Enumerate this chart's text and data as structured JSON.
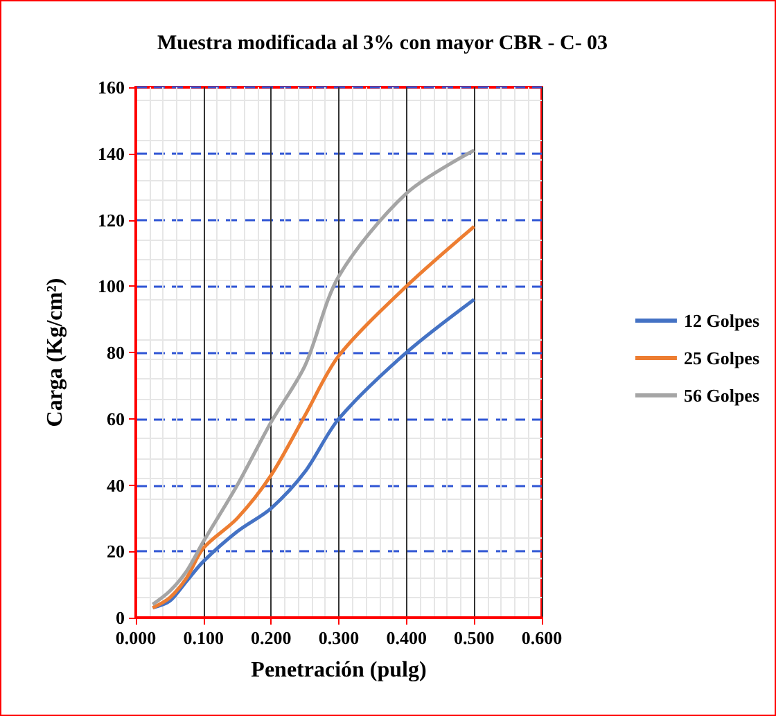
{
  "chart_data": {
    "type": "line",
    "title": "Muestra modificada al 3% con mayor CBR - C- 03",
    "xlabel": "Penetración (pulg)",
    "ylabel": "Carga (Kg/cm²)",
    "x": [
      0.025,
      0.05,
      0.075,
      0.1,
      0.15,
      0.2,
      0.25,
      0.3,
      0.4,
      0.5
    ],
    "series": [
      {
        "name": "12 Golpes",
        "color": "#4472c4",
        "values": [
          3,
          5,
          11,
          17,
          26,
          33,
          44,
          60,
          80,
          96
        ]
      },
      {
        "name": "25 Golpes",
        "color": "#ed7d31",
        "values": [
          3,
          6,
          12,
          21,
          30,
          43,
          61,
          79,
          100,
          118
        ]
      },
      {
        "name": "56 Golpes",
        "color": "#a5a5a5",
        "values": [
          4,
          8,
          14,
          23,
          40,
          59,
          76,
          103,
          128,
          141
        ]
      }
    ],
    "xlim": [
      0,
      0.6
    ],
    "xticks": [
      {
        "value": 0,
        "label": "0.000"
      },
      {
        "value": 0.1,
        "label": "0.100"
      },
      {
        "value": 0.2,
        "label": "0.200"
      },
      {
        "value": 0.3,
        "label": "0.300"
      },
      {
        "value": 0.4,
        "label": "0.400"
      },
      {
        "value": 0.5,
        "label": "0.500"
      },
      {
        "value": 0.6,
        "label": "0.600"
      }
    ],
    "ylim": [
      0,
      160
    ],
    "yticks": [
      0,
      20,
      40,
      60,
      80,
      100,
      120,
      140,
      160
    ],
    "grid": true,
    "legend": "right",
    "marker": "none",
    "line_style": "solid"
  }
}
